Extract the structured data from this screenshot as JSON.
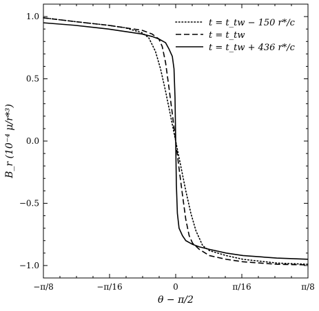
{
  "chart_data": {
    "type": "line",
    "xlabel": "θ − π/2",
    "ylabel": "B_r  (10⁻⁴ μ/r*³)",
    "xlim_rad": [
      -0.392699,
      0.392699
    ],
    "ylim": [
      -1.1,
      1.1
    ],
    "legend_position": "top-right",
    "grid": false,
    "x_ticks": [
      {
        "value": -0.392699,
        "label": "−π/8"
      },
      {
        "value": -0.19635,
        "label": "−π/16"
      },
      {
        "value": 0,
        "label": "0"
      },
      {
        "value": 0.19635,
        "label": "π/16"
      },
      {
        "value": 0.392699,
        "label": "π/8"
      }
    ],
    "y_ticks": [
      {
        "value": -1.0,
        "label": "−1.0"
      },
      {
        "value": -0.5,
        "label": "−0.5"
      },
      {
        "value": 0.0,
        "label": "0.0"
      },
      {
        "value": 0.5,
        "label": "0.5"
      },
      {
        "value": 1.0,
        "label": "1.0"
      }
    ],
    "series": [
      {
        "name": "t = t_tw − 150 r*/c",
        "style": "dotted",
        "x": [
          -0.3927,
          -0.3,
          -0.2,
          -0.15,
          -0.1,
          -0.08,
          -0.06,
          -0.045,
          -0.03,
          -0.015,
          0,
          0.015,
          0.03,
          0.045,
          0.06,
          0.08,
          0.1,
          0.15,
          0.2,
          0.3,
          0.3927
        ],
        "y": [
          0.99,
          0.96,
          0.93,
          0.91,
          0.87,
          0.83,
          0.72,
          0.58,
          0.4,
          0.2,
          0.0,
          -0.2,
          -0.4,
          -0.58,
          -0.72,
          -0.84,
          -0.88,
          -0.92,
          -0.95,
          -0.98,
          -0.99
        ]
      },
      {
        "name": "t = t_tw",
        "style": "dashed",
        "x": [
          -0.3927,
          -0.3,
          -0.2,
          -0.15,
          -0.1,
          -0.07,
          -0.05,
          -0.04,
          -0.03,
          -0.02,
          -0.01,
          0,
          0.01,
          0.02,
          0.03,
          0.04,
          0.05,
          0.07,
          0.1,
          0.15,
          0.2,
          0.3,
          0.3927
        ],
        "y": [
          0.99,
          0.96,
          0.93,
          0.91,
          0.89,
          0.86,
          0.82,
          0.76,
          0.63,
          0.43,
          0.22,
          0.0,
          -0.22,
          -0.43,
          -0.63,
          -0.76,
          -0.82,
          -0.87,
          -0.92,
          -0.95,
          -0.97,
          -0.99,
          -0.995
        ]
      },
      {
        "name": "t = t_tw + 436 r*/c",
        "style": "solid",
        "x": [
          -0.3927,
          -0.3,
          -0.2,
          -0.15,
          -0.1,
          -0.07,
          -0.05,
          -0.03,
          -0.02,
          -0.01,
          -0.005,
          -0.002,
          0,
          0.002,
          0.005,
          0.01,
          0.02,
          0.03,
          0.05,
          0.07,
          0.1,
          0.15,
          0.2,
          0.3,
          0.3927
        ],
        "y": [
          0.95,
          0.93,
          0.9,
          0.88,
          0.86,
          0.84,
          0.82,
          0.79,
          0.74,
          0.68,
          0.58,
          0.35,
          0.0,
          -0.35,
          -0.58,
          -0.7,
          -0.76,
          -0.8,
          -0.83,
          -0.85,
          -0.87,
          -0.9,
          -0.92,
          -0.94,
          -0.95
        ]
      }
    ]
  }
}
